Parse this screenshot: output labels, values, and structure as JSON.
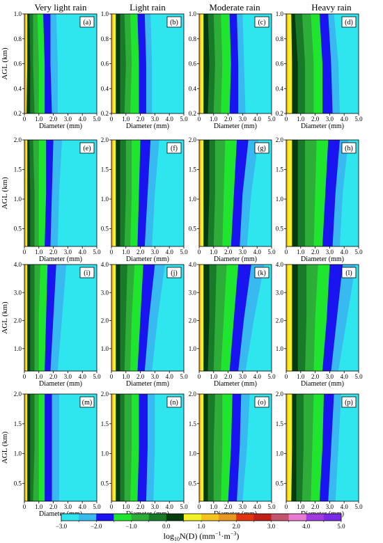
{
  "chart_data": {
    "type": "heatmap",
    "columns": [
      "Very light rain",
      "Light rain",
      "Moderate rain",
      "Heavy rain"
    ],
    "xlabel": "Diameter (mm)",
    "ylabel": "AGL (km)",
    "xlim": [
      0,
      5
    ],
    "xticks": [
      "0",
      "1.0",
      "2.0",
      "3.0",
      "4.0",
      "5.0"
    ],
    "colorbar": {
      "label_main": "log",
      "label_sub": "10",
      "label_rest": "N(D) (mm",
      "label_sup1": "−1",
      "label_mid": "·m",
      "label_sup2": "−3",
      "label_end": ")",
      "ticks": [
        "−3.0",
        "−2.0",
        "−1.0",
        "0.0",
        "1.0",
        "2.0",
        "3.0",
        "4.0",
        "5.0"
      ],
      "levels": [
        -3.0,
        -2.5,
        -2.0,
        -1.5,
        -1.0,
        -0.5,
        0.0,
        0.5,
        1.0,
        1.5,
        2.0,
        2.5,
        3.0,
        3.5,
        4.0,
        4.5,
        5.0
      ],
      "colors": [
        "#2fe6ef",
        "#38b9ef",
        "#1a14f0",
        "#1fe52e",
        "#2dae39",
        "#187b28",
        "#053c0e",
        "#f3f227",
        "#f4c31c",
        "#e89721",
        "#e2350f",
        "#c12017",
        "#c3546c",
        "#e87ad2",
        "#a13ae0",
        "#7a2be6"
      ]
    },
    "rows": [
      {
        "ylim": [
          0.2,
          1.0
        ],
        "yticks": [
          "0.2",
          "0.4",
          "0.6",
          "0.8",
          "1.0"
        ],
        "yvals": [
          0.2,
          0.4,
          0.6,
          0.8,
          1.0
        ],
        "panels": [
          {
            "label": "(a)",
            "y": [
              0.2,
              0.6,
              1.0
            ],
            "boundaries": [
              [
                2.3,
                2.3,
                2.2
              ],
              [
                1.9,
                1.8,
                1.8
              ],
              [
                1.4,
                1.4,
                1.3
              ],
              [
                1.0,
                1.0,
                0.9
              ],
              [
                0.7,
                0.6,
                0.6
              ],
              [
                0.4,
                0.4,
                0.35
              ],
              [
                0.15,
                0.2,
                0.2
              ]
            ]
          },
          {
            "label": "(b)",
            "y": [
              0.2,
              0.6,
              1.0
            ],
            "boundaries": [
              [
                2.8,
                2.8,
                2.7
              ],
              [
                2.4,
                2.4,
                2.3
              ],
              [
                1.9,
                1.9,
                1.8
              ],
              [
                1.3,
                1.4,
                1.3
              ],
              [
                0.9,
                1.0,
                0.9
              ],
              [
                0.6,
                0.6,
                0.6
              ],
              [
                0.3,
                0.3,
                0.3
              ]
            ]
          },
          {
            "label": "(c)",
            "y": [
              0.2,
              0.6,
              1.0
            ],
            "boundaries": [
              [
                3.2,
                3.1,
                3.0
              ],
              [
                2.7,
                2.7,
                2.6
              ],
              [
                2.1,
                2.2,
                2.1
              ],
              [
                1.5,
                1.6,
                1.5
              ],
              [
                1.0,
                1.1,
                1.0
              ],
              [
                0.6,
                0.7,
                0.6
              ],
              [
                0.3,
                0.3,
                0.3
              ]
            ]
          },
          {
            "label": "(d)",
            "y": [
              0.2,
              0.6,
              1.0
            ],
            "boundaries": [
              [
                3.7,
                3.6,
                3.3
              ],
              [
                3.2,
                3.1,
                2.9
              ],
              [
                2.5,
                2.5,
                2.3
              ],
              [
                1.9,
                1.9,
                1.7
              ],
              [
                1.3,
                1.3,
                1.1
              ],
              [
                0.8,
                0.8,
                0.6
              ],
              [
                0.4,
                0.4,
                0.35
              ]
            ]
          }
        ]
      },
      {
        "ylim": [
          0.2,
          2.0
        ],
        "yticks": [
          "0.5",
          "1.0",
          "1.5",
          "2.0"
        ],
        "yvals": [
          0.5,
          1.0,
          1.5,
          2.0
        ],
        "panels": [
          {
            "label": "(e)",
            "y": [
              0.2,
              1.1,
              2.0
            ],
            "boundaries": [
              [
                2.3,
                2.4,
                2.6
              ],
              [
                1.8,
                1.9,
                2.0
              ],
              [
                1.4,
                1.5,
                1.5
              ],
              [
                1.0,
                1.0,
                1.0
              ],
              [
                0.7,
                0.7,
                0.6
              ],
              [
                0.4,
                0.4,
                0.35
              ],
              [
                0.2,
                0.2,
                0.2
              ]
            ]
          },
          {
            "label": "(f)",
            "y": [
              0.2,
              1.1,
              2.0
            ],
            "boundaries": [
              [
                2.8,
                3.0,
                3.3
              ],
              [
                2.3,
                2.5,
                2.7
              ],
              [
                1.8,
                1.9,
                2.0
              ],
              [
                1.3,
                1.4,
                1.4
              ],
              [
                0.9,
                1.0,
                1.0
              ],
              [
                0.6,
                0.6,
                0.6
              ],
              [
                0.3,
                0.3,
                0.3
              ]
            ]
          },
          {
            "label": "(g)",
            "y": [
              0.2,
              1.1,
              2.0
            ],
            "boundaries": [
              [
                3.3,
                3.6,
                4.1
              ],
              [
                2.8,
                3.0,
                3.4
              ],
              [
                2.2,
                2.4,
                2.6
              ],
              [
                1.6,
                1.7,
                1.8
              ],
              [
                1.0,
                1.1,
                1.1
              ],
              [
                0.6,
                0.7,
                0.7
              ],
              [
                0.3,
                0.3,
                0.3
              ]
            ]
          },
          {
            "label": "(h)",
            "y": [
              0.2,
              1.1,
              2.0
            ],
            "boundaries": [
              [
                3.7,
                3.9,
                4.3
              ],
              [
                3.2,
                3.4,
                3.7
              ],
              [
                2.5,
                2.7,
                2.9
              ],
              [
                1.9,
                2.0,
                2.1
              ],
              [
                1.3,
                1.3,
                1.3
              ],
              [
                0.8,
                0.8,
                0.8
              ],
              [
                0.4,
                0.4,
                0.4
              ]
            ]
          }
        ]
      },
      {
        "ylim": [
          0.2,
          4.0
        ],
        "yticks": [
          "1.0",
          "2.0",
          "3.0",
          "4.0"
        ],
        "yvals": [
          1.0,
          2.0,
          3.0,
          4.0
        ],
        "panels": [
          {
            "label": "(i)",
            "y": [
              0.2,
              2.1,
              4.0
            ],
            "boundaries": [
              [
                2.3,
                2.6,
                2.9
              ],
              [
                1.8,
                2.0,
                2.2
              ],
              [
                1.4,
                1.5,
                1.6
              ],
              [
                1.0,
                1.0,
                1.1
              ],
              [
                0.7,
                0.7,
                0.7
              ],
              [
                0.4,
                0.4,
                0.4
              ],
              [
                0.2,
                0.2,
                0.2
              ]
            ]
          },
          {
            "label": "(j)",
            "y": [
              0.2,
              2.1,
              4.0
            ],
            "boundaries": [
              [
                2.8,
                3.2,
                3.7
              ],
              [
                2.3,
                2.6,
                3.0
              ],
              [
                1.8,
                2.0,
                2.2
              ],
              [
                1.3,
                1.4,
                1.6
              ],
              [
                0.9,
                1.0,
                1.1
              ],
              [
                0.6,
                0.6,
                0.6
              ],
              [
                0.3,
                0.3,
                0.3
              ]
            ]
          },
          {
            "label": "(k)",
            "y": [
              0.2,
              2.1,
              4.0
            ],
            "boundaries": [
              [
                3.2,
                3.8,
                4.5
              ],
              [
                2.7,
                3.1,
                3.6
              ],
              [
                2.1,
                2.4,
                2.7
              ],
              [
                1.5,
                1.7,
                1.9
              ],
              [
                1.0,
                1.1,
                1.2
              ],
              [
                0.6,
                0.7,
                0.7
              ],
              [
                0.3,
                0.3,
                0.3
              ]
            ]
          },
          {
            "label": "(l)",
            "y": [
              0.2,
              2.1,
              4.0
            ],
            "boundaries": [
              [
                3.6,
                4.2,
                4.8
              ],
              [
                3.1,
                3.5,
                3.9
              ],
              [
                2.5,
                2.8,
                3.0
              ],
              [
                1.9,
                2.0,
                2.2
              ],
              [
                1.3,
                1.4,
                1.4
              ],
              [
                0.8,
                0.8,
                0.8
              ],
              [
                0.4,
                0.4,
                0.4
              ]
            ]
          }
        ]
      },
      {
        "ylim": [
          0.2,
          2.0
        ],
        "yticks": [
          "0.5",
          "1.0",
          "1.5",
          "2.0"
        ],
        "yvals": [
          0.5,
          1.0,
          1.5,
          2.0
        ],
        "panels": [
          {
            "label": "(m)",
            "y": [
              0.2,
              1.1,
              2.0
            ],
            "boundaries": [
              [
                2.4,
                2.4,
                2.4
              ],
              [
                1.9,
                1.9,
                1.9
              ],
              [
                1.4,
                1.4,
                1.4
              ],
              [
                1.0,
                1.0,
                1.0
              ],
              [
                0.6,
                0.7,
                0.7
              ],
              [
                0.4,
                0.4,
                0.4
              ],
              [
                0.2,
                0.2,
                0.2
              ]
            ]
          },
          {
            "label": "(n)",
            "y": [
              0.2,
              1.1,
              2.0
            ],
            "boundaries": [
              [
                2.9,
                3.0,
                3.0
              ],
              [
                2.4,
                2.5,
                2.5
              ],
              [
                1.8,
                1.9,
                1.9
              ],
              [
                1.3,
                1.4,
                1.4
              ],
              [
                0.9,
                0.9,
                0.9
              ],
              [
                0.6,
                0.6,
                0.6
              ],
              [
                0.3,
                0.3,
                0.3
              ]
            ]
          },
          {
            "label": "(o)",
            "y": [
              0.2,
              1.1,
              2.0
            ],
            "boundaries": [
              [
                3.0,
                3.3,
                3.5
              ],
              [
                2.6,
                2.8,
                2.9
              ],
              [
                2.0,
                2.2,
                2.3
              ],
              [
                1.5,
                1.6,
                1.6
              ],
              [
                1.0,
                1.0,
                1.1
              ],
              [
                0.6,
                0.6,
                0.6
              ],
              [
                0.3,
                0.3,
                0.3
              ]
            ]
          },
          {
            "label": "(p)",
            "y": [
              0.2,
              1.1,
              2.0
            ],
            "boundaries": [
              [
                3.4,
                3.6,
                3.8
              ],
              [
                2.9,
                3.1,
                3.3
              ],
              [
                2.3,
                2.5,
                2.6
              ],
              [
                1.7,
                1.8,
                1.9
              ],
              [
                1.1,
                1.2,
                1.2
              ],
              [
                0.7,
                0.7,
                0.7
              ],
              [
                0.35,
                0.4,
                0.4
              ]
            ]
          }
        ]
      }
    ]
  }
}
